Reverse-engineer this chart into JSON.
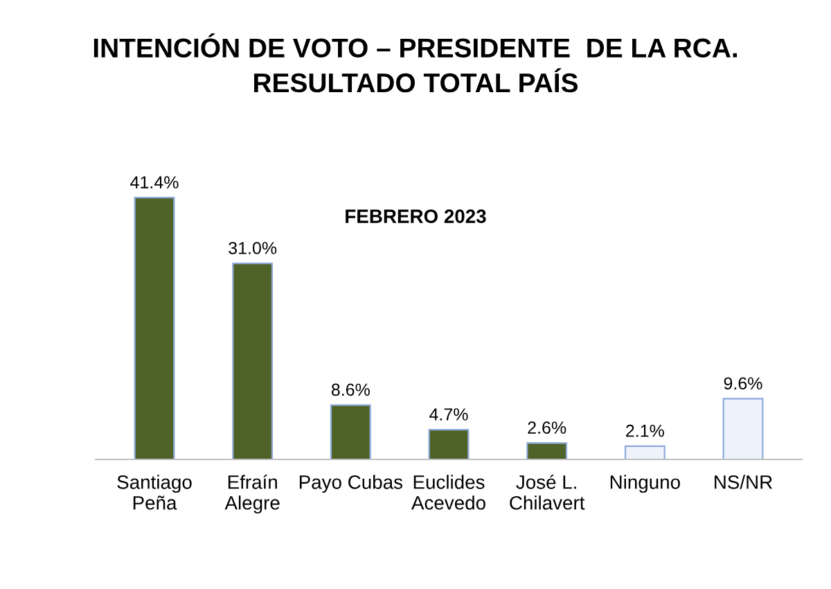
{
  "chart_data": {
    "type": "bar",
    "title": "INTENCIÓN DE VOTO – PRESIDENTE  DE LA RCA.\nRESULTADO TOTAL PAÍS",
    "subtitle": "FEBRERO 2023",
    "categories": [
      "Santiago\nPeña",
      "Efraín\nAlegre",
      "Payo Cubas",
      "Euclides\nAcevedo",
      "José L.\nChilavert",
      "Ninguno",
      "NS/NR"
    ],
    "values": [
      41.4,
      31.0,
      8.6,
      4.7,
      2.6,
      2.1,
      9.6
    ],
    "value_labels": [
      "41.4%",
      "31.0%",
      "8.6%",
      "4.7%",
      "2.6%",
      "2.1%",
      "9.6%"
    ],
    "colors": [
      "#4f6228",
      "#4f6228",
      "#4f6228",
      "#4f6228",
      "#4f6228",
      "#eef2fa",
      "#eef2fa"
    ],
    "grid": false,
    "legend": false
  }
}
